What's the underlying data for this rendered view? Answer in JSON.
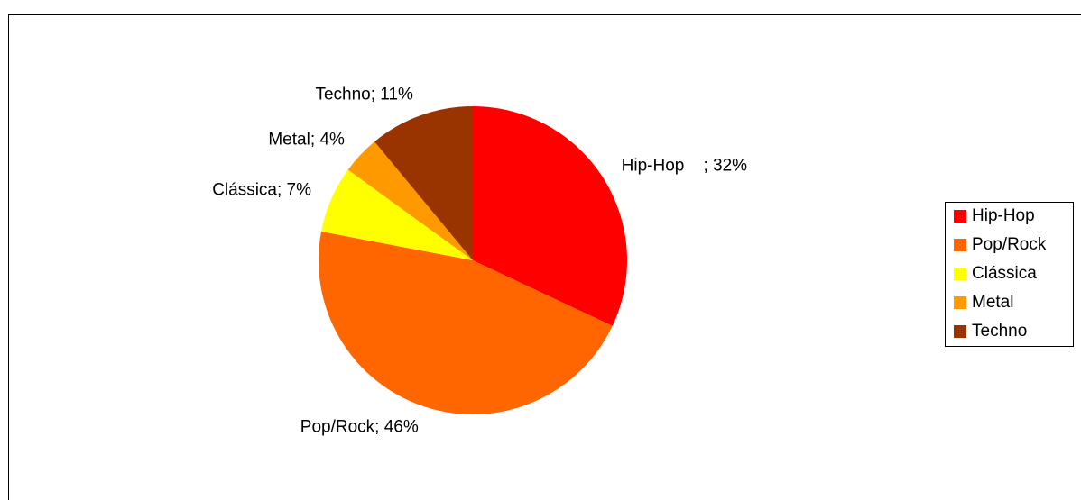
{
  "chart_data": {
    "type": "pie",
    "categories": [
      "Hip-Hop",
      "Pop/Rock",
      "Clássica",
      "Metal",
      "Techno"
    ],
    "values": [
      32,
      46,
      7,
      4,
      11
    ],
    "value_labels": [
      "Hip-Hop    ; 32%",
      "Pop/Rock; 46%",
      "Clássica; 7%",
      "Metal; 4%",
      "Techno; 11%"
    ],
    "colors": [
      "#ff0000",
      "#ff6600",
      "#ffff00",
      "#ff9900",
      "#993300"
    ],
    "legend": "right"
  }
}
